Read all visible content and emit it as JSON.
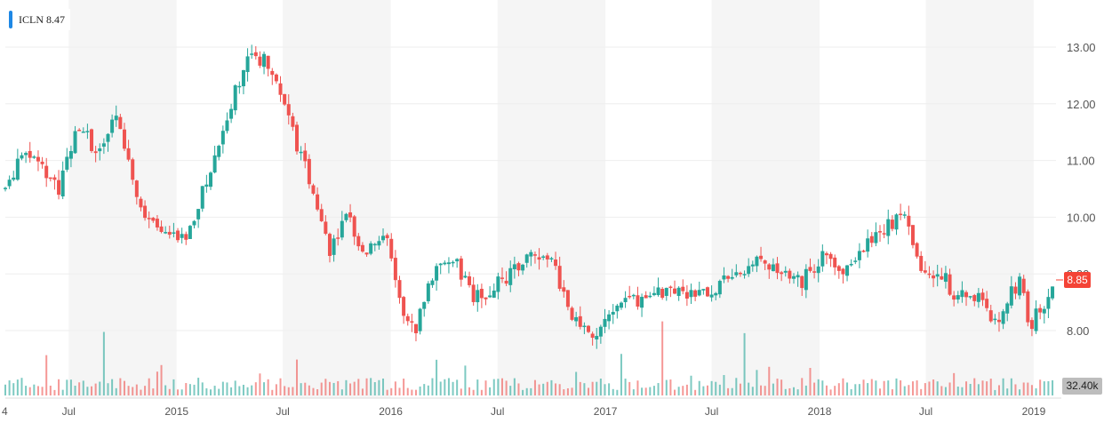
{
  "legend": {
    "label": "ICLN 8.47",
    "color": "#1e88e5"
  },
  "colors": {
    "up": "#26a69a",
    "down": "#ef5350",
    "band": "#f5f5f5",
    "grid": "#eeeeee",
    "axis_text": "#555555"
  },
  "current_price": "8.85",
  "volume_label": "32.40k",
  "chart_data": {
    "type": "candlestick",
    "x_tick_labels": [
      "4",
      "Jul",
      "2015",
      "Jul",
      "2016",
      "Jul",
      "2017",
      "Jul",
      "2018",
      "Jul",
      "2019"
    ],
    "y_tick_labels": [
      "13.00",
      "12.00",
      "11.00",
      "10.00",
      "9.00",
      "8.00"
    ],
    "y_ticks": [
      13,
      12,
      11,
      10,
      9,
      8
    ],
    "ylim": [
      7.3,
      13.7
    ],
    "x_range": [
      "2014-03-15",
      "2019-02-08"
    ],
    "x_ticks": [
      "2014-03-15",
      "2014-07-01",
      "2015-01-01",
      "2015-07-01",
      "2016-01-01",
      "2016-07-01",
      "2017-01-01",
      "2017-07-01",
      "2018-01-01",
      "2018-07-01",
      "2019-01-01"
    ],
    "bands": [
      [
        "2014-07-01",
        "2015-01-01"
      ],
      [
        "2015-07-01",
        "2016-01-01"
      ],
      [
        "2016-07-01",
        "2017-01-01"
      ],
      [
        "2017-07-01",
        "2018-01-01"
      ],
      [
        "2018-07-01",
        "2019-01-01"
      ]
    ],
    "trend_knots": [
      [
        "2014-03-15",
        10.5
      ],
      [
        "2014-04-20",
        11.2
      ],
      [
        "2014-05-20",
        10.8
      ],
      [
        "2014-06-15",
        10.5
      ],
      [
        "2014-07-15",
        11.7
      ],
      [
        "2014-08-20",
        11.1
      ],
      [
        "2014-09-20",
        11.8
      ],
      [
        "2014-10-15",
        10.9
      ],
      [
        "2014-11-01",
        10.2
      ],
      [
        "2014-12-15",
        9.7
      ],
      [
        "2015-01-15",
        9.6
      ],
      [
        "2015-02-20",
        10.6
      ],
      [
        "2015-03-20",
        11.5
      ],
      [
        "2015-04-15",
        12.4
      ],
      [
        "2015-05-10",
        12.85
      ],
      [
        "2015-06-10",
        12.7
      ],
      [
        "2015-06-25",
        12.2
      ],
      [
        "2015-07-25",
        11.3
      ],
      [
        "2015-08-25",
        10.4
      ],
      [
        "2015-09-20",
        9.4
      ],
      [
        "2015-10-20",
        10.0
      ],
      [
        "2015-11-20",
        9.3
      ],
      [
        "2015-12-20",
        9.8
      ],
      [
        "2016-01-20",
        8.3
      ],
      [
        "2016-02-10",
        7.95
      ],
      [
        "2016-03-10",
        9.0
      ],
      [
        "2016-04-15",
        9.3
      ],
      [
        "2016-05-20",
        8.6
      ],
      [
        "2016-06-20",
        8.7
      ],
      [
        "2016-07-20",
        9.0
      ],
      [
        "2016-08-25",
        9.3
      ],
      [
        "2016-10-01",
        9.2
      ],
      [
        "2016-11-05",
        8.3
      ],
      [
        "2016-11-20",
        7.95
      ],
      [
        "2016-12-20",
        8.0
      ],
      [
        "2017-02-01",
        8.5
      ],
      [
        "2017-03-15",
        8.6
      ],
      [
        "2017-05-01",
        8.75
      ],
      [
        "2017-06-15",
        8.6
      ],
      [
        "2017-08-01",
        8.9
      ],
      [
        "2017-09-15",
        9.2
      ],
      [
        "2017-11-01",
        9.1
      ],
      [
        "2017-12-01",
        8.85
      ],
      [
        "2018-01-15",
        9.45
      ],
      [
        "2018-02-10",
        9.0
      ],
      [
        "2018-03-05",
        9.4
      ],
      [
        "2018-04-20",
        9.8
      ],
      [
        "2018-05-25",
        10.0
      ],
      [
        "2018-06-10",
        9.6
      ],
      [
        "2018-07-01",
        8.9
      ],
      [
        "2018-08-01",
        9.0
      ],
      [
        "2018-08-20",
        8.55
      ],
      [
        "2018-09-25",
        8.65
      ],
      [
        "2018-10-25",
        8.1
      ],
      [
        "2018-11-25",
        8.75
      ],
      [
        "2018-12-10",
        8.85
      ],
      [
        "2018-12-25",
        8.1
      ],
      [
        "2019-02-08",
        8.85
      ]
    ],
    "max_volume_note": "volume histogram along bottom"
  }
}
